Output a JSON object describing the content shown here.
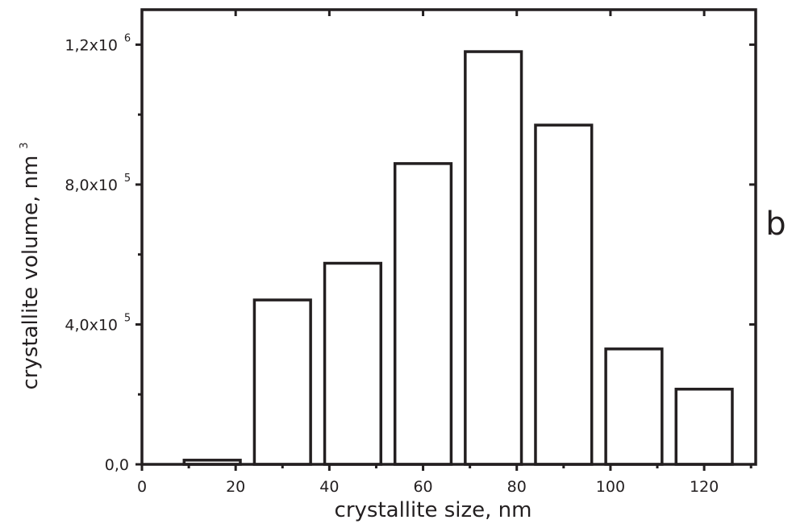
{
  "chart_data": {
    "type": "bar",
    "panel_label": "b",
    "xlabel": "crystallite size, nm",
    "ylabel": "crystallite volume, nm",
    "ylabel_superscript": "3",
    "xlim": [
      0,
      131
    ],
    "ylim": [
      0,
      1300000
    ],
    "x_ticks": [
      {
        "value": 0,
        "label": "0"
      },
      {
        "value": 20,
        "label": "20"
      },
      {
        "value": 40,
        "label": "40"
      },
      {
        "value": 60,
        "label": "60"
      },
      {
        "value": 80,
        "label": "80"
      },
      {
        "value": 100,
        "label": "100"
      },
      {
        "value": 120,
        "label": "120"
      }
    ],
    "x_minor_ticks": [
      10,
      30,
      50,
      70,
      90,
      110,
      130
    ],
    "y_ticks": [
      {
        "value": 0,
        "label": "0,0",
        "exponent": ""
      },
      {
        "value": 400000,
        "label": "4,0x10",
        "exponent": "5"
      },
      {
        "value": 800000,
        "label": "8,0x10",
        "exponent": "5"
      },
      {
        "value": 1200000,
        "label": "1,2x10",
        "exponent": "6"
      }
    ],
    "y_minor_ticks": [
      200000,
      600000,
      1000000
    ],
    "bars": [
      {
        "x0": 9,
        "x1": 21,
        "value": 12000
      },
      {
        "x0": 24,
        "x1": 36,
        "value": 470000
      },
      {
        "x0": 39,
        "x1": 51,
        "value": 575000
      },
      {
        "x0": 54,
        "x1": 66,
        "value": 860000
      },
      {
        "x0": 69,
        "x1": 81,
        "value": 1180000
      },
      {
        "x0": 84,
        "x1": 96,
        "value": 970000
      },
      {
        "x0": 99,
        "x1": 111,
        "value": 330000
      },
      {
        "x0": 114,
        "x1": 126,
        "value": 215000
      }
    ],
    "grid": false,
    "legend": "none"
  }
}
